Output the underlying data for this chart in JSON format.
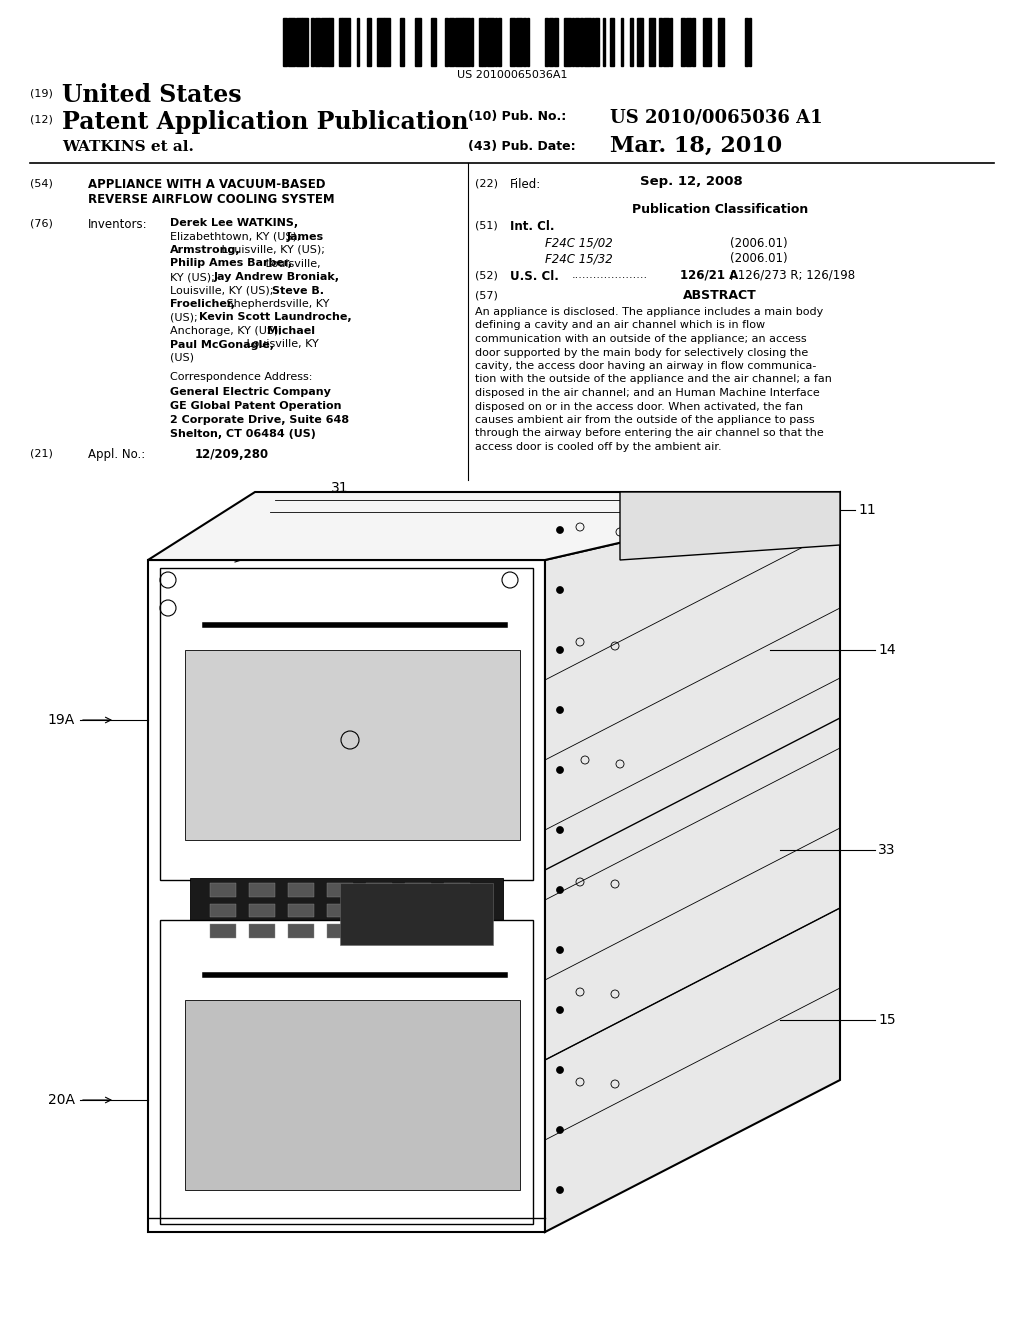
{
  "background_color": "#ffffff",
  "barcode_text": "US 20100065036A1",
  "header": {
    "country_num": "(19)",
    "country": "United States",
    "type_num": "(12)",
    "type": "Patent Application Publication",
    "pub_num_label": "(10) Pub. No.:",
    "pub_num": "US 2010/0065036 A1",
    "inventor_line": "WATKINS et al.",
    "pub_date_label": "(43) Pub. Date:",
    "pub_date": "Mar. 18, 2010"
  },
  "left_col": {
    "title_num": "(54)",
    "title_line1": "APPLIANCE WITH A VACUUM-BASED",
    "title_line2": "REVERSE AIRFLOW COOLING SYSTEM",
    "inventors_num": "(76)",
    "inventors_label": "Inventors:",
    "corr_label": "Correspondence Address:",
    "corr_name": "General Electric Company",
    "corr_dept": "GE Global Patent Operation",
    "corr_addr1": "2 Corporate Drive, Suite 648",
    "corr_addr2": "Shelton, CT 06484 (US)",
    "appl_num": "(21)",
    "appl_label": "Appl. No.:",
    "appl_value": "12/209,280"
  },
  "right_col": {
    "filed_num": "(22)",
    "filed_label": "Filed:",
    "filed_date": "Sep. 12, 2008",
    "pub_class_header": "Publication Classification",
    "intcl_num": "(51)",
    "intcl_label": "Int. Cl.",
    "intcl_code1": "F24C 15/02",
    "intcl_year1": "(2006.01)",
    "intcl_code2": "F24C 15/32",
    "intcl_year2": "(2006.01)",
    "uscl_num": "(52)",
    "uscl_label": "U.S. Cl.",
    "uscl_dots": ".....................",
    "uscl_value": "126/21 A",
    "uscl_rest": "; 126/273 R; 126/198",
    "abstract_num": "(57)",
    "abstract_header": "ABSTRACT",
    "abstract_line1": "An appliance is disclosed. The appliance includes a main body",
    "abstract_line2": "defining a cavity and an air channel which is in flow",
    "abstract_line3": "communication with an outside of the appliance; an access",
    "abstract_line4": "door supported by the main body for selectively closing the",
    "abstract_line5": "cavity, the access door having an airway in flow communica-",
    "abstract_line6": "tion with the outside of the appliance and the air channel; a fan",
    "abstract_line7": "disposed in the air channel; and an Human Machine Interface",
    "abstract_line8": "disposed on or in the access door. When activated, the fan",
    "abstract_line9": "causes ambient air from the outside of the appliance to pass",
    "abstract_line10": "through the airway before entering the air channel so that the",
    "abstract_line11": "access door is cooled off by the ambient air."
  }
}
